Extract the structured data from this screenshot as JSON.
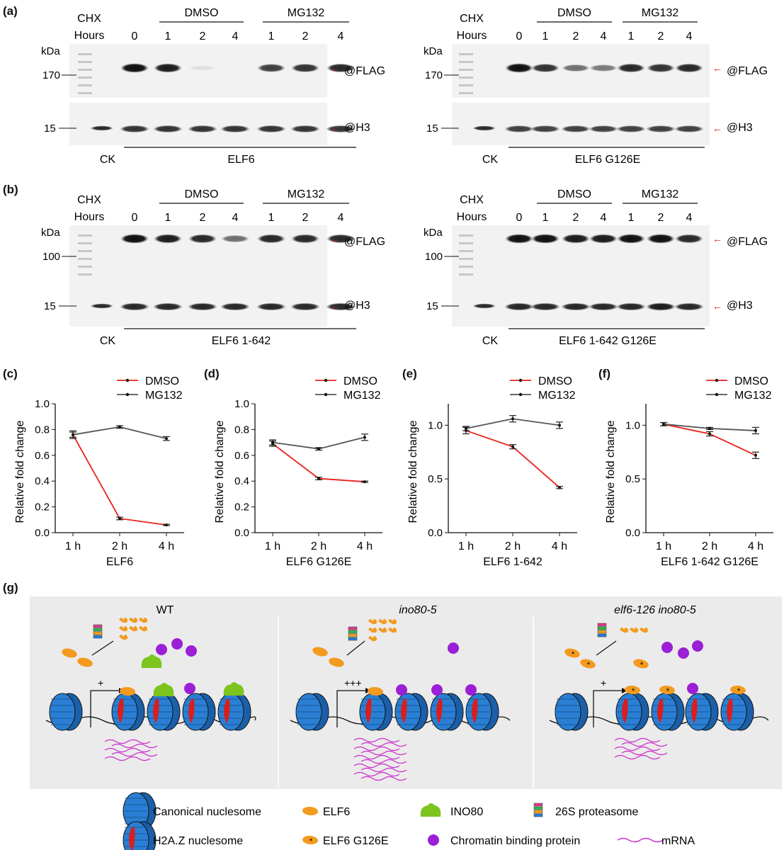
{
  "labels": [
    "(a)",
    "(b)",
    "(c)",
    "(d)",
    "(e)",
    "(f)",
    "(g)"
  ],
  "blots": [
    {
      "cond": [
        "DMSO",
        "MG132"
      ],
      "chx": "CHX",
      "hours_label": "Hours",
      "hours": [
        "0",
        "1",
        "2",
        "4",
        "1",
        "2",
        "4"
      ],
      "kda": "kDa",
      "marker_top": "170",
      "marker_bottom": "15",
      "ab_top": "@FLAG",
      "ab_bottom": "@H3",
      "ck": "CK",
      "sample": "ELF6",
      "bands_top": [
        0.95,
        0.9,
        0.08,
        0.0,
        0.75,
        0.8,
        0.85
      ],
      "bands_bottom": [
        0.8,
        0.8,
        0.8,
        0.8,
        0.8,
        0.8,
        0.8
      ]
    },
    {
      "cond": [
        "DMSO",
        "MG132"
      ],
      "chx": "CHX",
      "hours_label": "Hours",
      "hours": [
        "0",
        "1",
        "2",
        "4",
        "1",
        "2",
        "4"
      ],
      "kda": "kDa",
      "marker_top": "170",
      "marker_bottom": "15",
      "ab_top": "@FLAG",
      "ab_bottom": "@H3",
      "ck": "CK",
      "sample": "ELF6 G126E",
      "bands_top": [
        0.95,
        0.8,
        0.55,
        0.5,
        0.85,
        0.8,
        0.85
      ],
      "bands_bottom": [
        0.75,
        0.75,
        0.75,
        0.75,
        0.75,
        0.75,
        0.75
      ]
    },
    {
      "cond": [
        "DMSO",
        "MG132"
      ],
      "chx": "CHX",
      "hours_label": "Hours",
      "hours": [
        "0",
        "1",
        "2",
        "4",
        "1",
        "2",
        "4"
      ],
      "kda": "kDa",
      "marker_top": "100",
      "marker_bottom": "15",
      "ab_top": "@FLAG",
      "ab_bottom": "@H3",
      "ck": "CK",
      "sample": "ELF6 1-642",
      "bands_top": [
        0.95,
        0.9,
        0.85,
        0.55,
        0.85,
        0.85,
        0.85
      ],
      "bands_bottom": [
        0.85,
        0.85,
        0.85,
        0.85,
        0.85,
        0.85,
        0.85
      ]
    },
    {
      "cond": [
        "DMSO",
        "MG132"
      ],
      "chx": "CHX",
      "hours_label": "Hours",
      "hours": [
        "0",
        "1",
        "2",
        "4",
        "1",
        "2",
        "4"
      ],
      "kda": "kDa",
      "marker_top": "100",
      "marker_bottom": "15",
      "ab_top": "@FLAG",
      "ab_bottom": "@H3",
      "ck": "CK",
      "sample": "ELF6 1-642 G126E",
      "bands_top": [
        0.95,
        0.95,
        0.9,
        0.9,
        0.95,
        0.95,
        0.85
      ],
      "bands_bottom": [
        0.85,
        0.85,
        0.85,
        0.85,
        0.85,
        0.9,
        0.85
      ]
    }
  ],
  "chart_data": [
    {
      "type": "line",
      "x": [
        "1 h",
        "2 h",
        "4 h"
      ],
      "xlabel": "ELF6",
      "ylabel": "Relative fold change",
      "ylim": [
        0,
        1.0
      ],
      "yticks": [
        "0.0",
        "0.2",
        "0.4",
        "0.6",
        "0.8",
        "1.0"
      ],
      "legend": "top-right",
      "series": [
        {
          "name": "DMSO",
          "values": [
            0.76,
            0.11,
            0.06
          ],
          "err": [
            0.02,
            0.01,
            0.005
          ],
          "color": "#e8201c"
        },
        {
          "name": "MG132",
          "values": [
            0.76,
            0.82,
            0.73
          ],
          "err": [
            0.03,
            0.01,
            0.015
          ],
          "color": "#555555"
        }
      ]
    },
    {
      "type": "line",
      "x": [
        "1 h",
        "2 h",
        "4 h"
      ],
      "xlabel": "ELF6 G126E",
      "ylabel": "Relative fold change",
      "ylim": [
        0,
        1.0
      ],
      "yticks": [
        "0.0",
        "0.2",
        "0.4",
        "0.6",
        "0.8",
        "1.0"
      ],
      "legend": "top-right",
      "series": [
        {
          "name": "DMSO",
          "values": [
            0.69,
            0.42,
            0.395
          ],
          "err": [
            0.02,
            0.01,
            0.005
          ],
          "color": "#e8201c"
        },
        {
          "name": "MG132",
          "values": [
            0.7,
            0.65,
            0.74
          ],
          "err": [
            0.02,
            0.01,
            0.025
          ],
          "color": "#555555"
        }
      ]
    },
    {
      "type": "line",
      "x": [
        "1 h",
        "2 h",
        "4 h"
      ],
      "xlabel": "ELF6 1-642",
      "ylabel": "Relative fold change",
      "ylim": [
        0,
        1.2
      ],
      "yticks": [
        "0.0",
        "0.5",
        "1.0"
      ],
      "ytickvals": [
        0,
        0.5,
        1.0
      ],
      "legend": "top-right",
      "series": [
        {
          "name": "DMSO",
          "values": [
            0.95,
            0.8,
            0.42
          ],
          "err": [
            0.03,
            0.02,
            0.01
          ],
          "color": "#e8201c"
        },
        {
          "name": "MG132",
          "values": [
            0.97,
            1.06,
            1.0
          ],
          "err": [
            0.02,
            0.03,
            0.03
          ],
          "color": "#555555"
        }
      ]
    },
    {
      "type": "line",
      "x": [
        "1 h",
        "2 h",
        "4 h"
      ],
      "xlabel": "ELF6 1-642 G126E",
      "ylabel": "Relative fold change",
      "ylim": [
        0,
        1.2
      ],
      "yticks": [
        "0.0",
        "0.5",
        "1.0"
      ],
      "ytickvals": [
        0,
        0.5,
        1.0
      ],
      "legend": "top-right",
      "series": [
        {
          "name": "DMSO",
          "values": [
            1.01,
            0.92,
            0.72
          ],
          "err": [
            0.015,
            0.02,
            0.03
          ],
          "color": "#e8201c"
        },
        {
          "name": "MG132",
          "values": [
            1.01,
            0.97,
            0.95
          ],
          "err": [
            0.015,
            0.01,
            0.03
          ],
          "color": "#555555"
        }
      ]
    }
  ],
  "model": {
    "titles": [
      "WT",
      "ino80-5",
      "elf6-126 ino80-5"
    ],
    "arrows": [
      "+",
      "+++",
      "+"
    ],
    "legend": [
      "Canonical nuclesome",
      "ELF6",
      "INO80",
      "26S proteasome",
      "H2A.Z nuclesome",
      "ELF6 G126E",
      "Chromatin binding protein",
      "mRNA"
    ],
    "colors": {
      "nucleosome": "#2a7fd4",
      "h2az": "#d81e1e",
      "elf6": "#f39a1f",
      "ino80": "#7dc41f",
      "chromatin": "#9b1fd6",
      "mrna": "#cc2fcc",
      "background": "#ebebeb"
    }
  }
}
